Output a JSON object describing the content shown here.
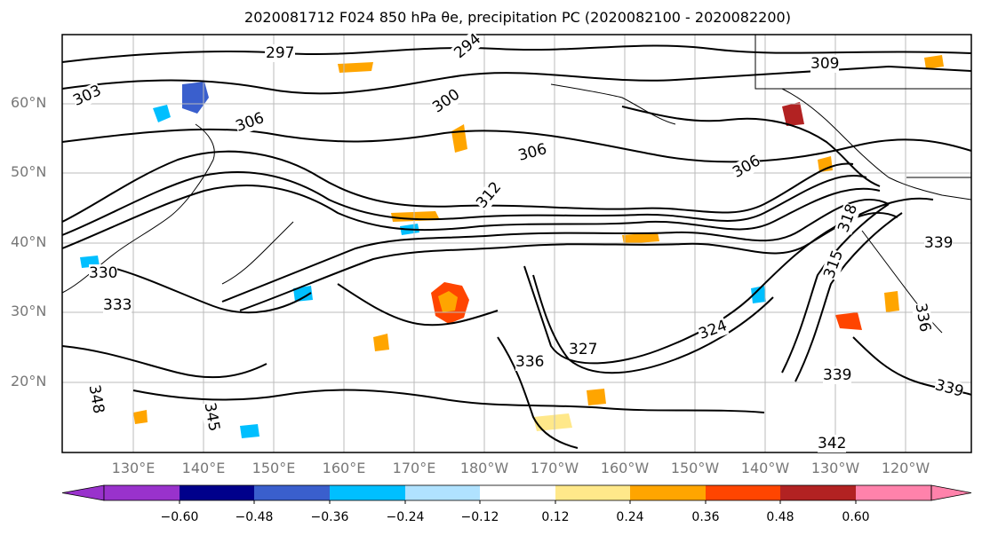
{
  "title": "2020081712 F024 850 hPa θe, precipitation PC (2020082100 - 2020082200)",
  "map": {
    "lat_labels": [
      "60°N",
      "50°N",
      "40°N",
      "30°N",
      "20°N"
    ],
    "lon_labels": [
      "130°E",
      "140°E",
      "150°E",
      "160°E",
      "170°E",
      "180°W",
      "170°W",
      "160°W",
      "150°W",
      "140°W",
      "130°W",
      "120°W"
    ],
    "contour_labels": [
      "297",
      "294",
      "303",
      "309",
      "300",
      "306",
      "306",
      "306",
      "312",
      "318",
      "315",
      "324",
      "327",
      "333",
      "336",
      "339",
      "339",
      "342",
      "345",
      "348",
      "330",
      "336",
      "339"
    ]
  },
  "colorbar": {
    "ticks": [
      "−0.60",
      "−0.48",
      "−0.36",
      "−0.24",
      "−0.12",
      "0.12",
      "0.24",
      "0.36",
      "0.48",
      "0.60"
    ],
    "colors": [
      "#9932cc",
      "#00008b",
      "#3a5fcd",
      "#00bfff",
      "#b0e2ff",
      "#ffffff",
      "#ffe88a",
      "#ffa500",
      "#ff4500",
      "#b22222",
      "#ff82ab"
    ]
  }
}
